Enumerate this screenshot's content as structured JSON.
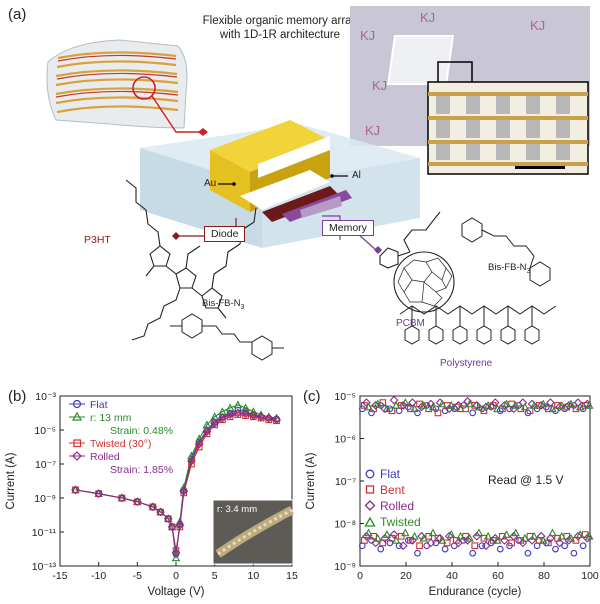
{
  "panel_a": {
    "label": "(a)",
    "title_line1": "Flexible organic memory array",
    "title_line2": "with 1D-1R architecture",
    "au": "Au",
    "al": "Al",
    "diode": "Diode",
    "memory": "Memory",
    "p3ht": "P3HT",
    "bisfb_left": "Bis-FB-N",
    "bisfb_left_sub": "3",
    "bisfb_right": "Bis-FB-N",
    "bisfb_right_sub": "3",
    "pcbm": "PCBM",
    "polystyrene": "Polystyrene",
    "colors": {
      "diode": "#8b1a1a",
      "memory": "#7a3f9a",
      "p3ht": "#a01818",
      "pcbm": "#6b3a9a",
      "connector_red": "#d02020"
    }
  },
  "panel_b": {
    "label": "(b)",
    "legend": [
      "Flat",
      "r: 13 mm",
      "Strain: 0.48%",
      "Twisted (30°)",
      "Rolled",
      "Strain: 1.85%"
    ],
    "inset_label": "r: 3.4 mm",
    "chart_data": {
      "type": "line",
      "xlabel": "Voltage (V)",
      "ylabel": "Current (A)",
      "xlim": [
        -15,
        15
      ],
      "ylim_log10": [
        -13,
        -3
      ],
      "x_ticks": [
        "-15",
        "-10",
        "-5",
        "0",
        "5",
        "10",
        "15"
      ],
      "y_ticks": [
        "10⁻¹³",
        "10⁻¹¹",
        "10⁻⁹",
        "10⁻⁷",
        "10⁻⁵",
        "10⁻³"
      ],
      "series": [
        {
          "name": "Flat",
          "color": "#3a3ac8",
          "marker": "circle",
          "x": [
            -13,
            -10,
            -7,
            -5,
            -3,
            -2,
            -1,
            -0.5,
            0,
            0.5,
            1,
            2,
            3,
            4,
            5,
            6,
            7,
            8,
            9,
            10,
            11,
            12,
            13
          ],
          "y": [
            3e-09,
            1.8e-09,
            1e-09,
            6e-10,
            3e-10,
            1.5e-10,
            6e-11,
            2e-11,
            5e-13,
            3e-11,
            3e-09,
            2e-07,
            2e-06,
            1e-05,
            3e-05,
            6e-05,
            0.0001,
            0.00015,
            0.00012,
            8e-05,
            6e-05,
            5e-05,
            4.5e-05
          ]
        },
        {
          "name": "r: 13 mm",
          "color": "#2a8a2a",
          "marker": "triangle",
          "x": [
            -13,
            -10,
            -7,
            -5,
            -3,
            -2,
            -1,
            -0.5,
            0,
            0.5,
            1,
            2,
            3,
            4,
            5,
            6,
            7,
            8,
            9,
            10,
            11,
            12,
            13
          ],
          "y": [
            3e-09,
            1.8e-09,
            1e-09,
            6e-10,
            3e-10,
            1.5e-10,
            6e-11,
            2e-11,
            3e-13,
            4e-11,
            4e-09,
            3e-07,
            3e-06,
            2e-05,
            6e-05,
            0.00012,
            0.0002,
            0.0003,
            0.0002,
            0.00012,
            8e-05,
            6e-05,
            5e-05
          ]
        },
        {
          "name": "Twisted (30°)",
          "color": "#d03030",
          "marker": "square",
          "x": [
            -13,
            -10,
            -7,
            -5,
            -3,
            -2,
            -1,
            -0.5,
            0,
            0.5,
            1,
            2,
            3,
            4,
            5,
            6,
            7,
            8,
            9,
            10,
            11,
            12,
            13
          ],
          "y": [
            3e-09,
            1.8e-09,
            1e-09,
            6e-10,
            3e-10,
            1.5e-10,
            6e-11,
            2e-11,
            8e-13,
            2e-11,
            2e-09,
            1e-07,
            1e-06,
            6e-06,
            2e-05,
            4e-05,
            6e-05,
            8e-05,
            7e-05,
            6e-05,
            5e-05,
            4e-05,
            3.5e-05
          ]
        },
        {
          "name": "Rolled",
          "color": "#8a2a8a",
          "marker": "diamond",
          "x": [
            -13,
            -10,
            -7,
            -5,
            -3,
            -2,
            -1,
            -0.5,
            0,
            0.5,
            1,
            2,
            3,
            4,
            5,
            6,
            7,
            8,
            9,
            10,
            11,
            12,
            13
          ],
          "y": [
            3e-09,
            1.8e-09,
            1e-09,
            6e-10,
            3e-10,
            1.5e-10,
            6e-11,
            2e-11,
            6e-13,
            2.5e-11,
            2.5e-09,
            1.5e-07,
            1.5e-06,
            8e-06,
            2.5e-05,
            5e-05,
            8e-05,
            0.0001,
            9e-05,
            7e-05,
            6e-05,
            5e-05,
            4e-05
          ]
        }
      ]
    }
  },
  "panel_c": {
    "label": "(c)",
    "legend": [
      "Flat",
      "Bent",
      "Rolled",
      "Twisted"
    ],
    "annotation": "Read @ 1.5 V",
    "chart_data": {
      "type": "scatter",
      "xlabel": "Endurance (cycle)",
      "ylabel": "Current (A)",
      "xlim": [
        0,
        100
      ],
      "ylim_log10": [
        -9,
        -5
      ],
      "x_ticks": [
        "0",
        "20",
        "40",
        "60",
        "80",
        "100"
      ],
      "y_ticks": [
        "10⁻⁹",
        "10⁻⁸",
        "10⁻⁷",
        "10⁻⁶",
        "10⁻⁵"
      ],
      "cycles": [
        1,
        5,
        9,
        13,
        17,
        21,
        25,
        29,
        33,
        37,
        41,
        45,
        49,
        53,
        57,
        61,
        65,
        69,
        73,
        77,
        81,
        85,
        89,
        93,
        97
      ],
      "series": [
        {
          "name": "Flat",
          "color": "#3a3ac8",
          "marker": "circle",
          "high": [
            5e-06,
            4e-06,
            6e-06,
            5e-06,
            4.5e-06,
            5.5e-06,
            4e-06,
            6e-06,
            5e-06,
            4.5e-06,
            5e-06,
            6e-06,
            4e-06,
            5e-06,
            5.5e-06,
            4.5e-06,
            5e-06,
            6e-06,
            4e-06,
            5e-06,
            5.5e-06,
            4.5e-06,
            5e-06,
            6e-06,
            5e-06
          ],
          "low": [
            3e-09,
            4e-09,
            2.5e-09,
            3.5e-09,
            3e-09,
            4e-09,
            2e-09,
            3e-09,
            3.5e-09,
            2.5e-09,
            3e-09,
            4e-09,
            2e-09,
            3e-09,
            3.5e-09,
            2.5e-09,
            3e-09,
            4e-09,
            2e-09,
            3e-09,
            3.5e-09,
            2.5e-09,
            3e-09,
            2e-09,
            3e-09
          ]
        },
        {
          "name": "Bent",
          "color": "#d03030",
          "marker": "square",
          "high": [
            6e-06,
            5e-06,
            7e-06,
            4.5e-06,
            6e-06,
            5e-06,
            6.5e-06,
            5e-06,
            4e-06,
            6e-06,
            5.5e-06,
            5e-06,
            6e-06,
            4.5e-06,
            6e-06,
            5e-06,
            6.5e-06,
            5e-06,
            4.5e-06,
            6e-06,
            5e-06,
            6e-06,
            5.5e-06,
            5e-06,
            6e-06
          ],
          "low": [
            4e-09,
            5e-09,
            3.5e-09,
            4.5e-09,
            5e-09,
            4e-09,
            3e-09,
            5e-09,
            4.5e-09,
            3.5e-09,
            4e-09,
            5e-09,
            3e-09,
            4.5e-09,
            4e-09,
            5e-09,
            3.5e-09,
            4e-09,
            5e-09,
            4e-09,
            3.5e-09,
            4.5e-09,
            5e-09,
            4e-09,
            5.5e-09
          ]
        },
        {
          "name": "Rolled",
          "color": "#8a2a8a",
          "marker": "diamond",
          "high": [
            7e-06,
            6e-06,
            5e-06,
            8e-06,
            6e-06,
            7e-06,
            5.5e-06,
            6.5e-06,
            7e-06,
            5e-06,
            6e-06,
            7.5e-06,
            6e-06,
            5.5e-06,
            7e-06,
            6e-06,
            5e-06,
            7e-06,
            6.5e-06,
            6e-06,
            7e-06,
            5.5e-06,
            6e-06,
            7e-06,
            6.5e-06
          ],
          "low": [
            5e-09,
            3.5e-09,
            4.5e-09,
            5.5e-09,
            3e-09,
            4e-09,
            5e-09,
            3.5e-09,
            4.5e-09,
            5e-09,
            3.5e-09,
            4e-09,
            5e-09,
            3e-09,
            4.5e-09,
            4e-09,
            5e-09,
            3.5e-09,
            4e-09,
            5e-09,
            4.5e-09,
            3.5e-09,
            4e-09,
            5e-09,
            4.5e-09
          ]
        },
        {
          "name": "Twisted",
          "color": "#2a8a2a",
          "marker": "triangle",
          "high": [
            5.5e-06,
            6.5e-06,
            5e-06,
            6e-06,
            7e-06,
            5e-06,
            6e-06,
            5.5e-06,
            6.5e-06,
            6e-06,
            5e-06,
            6.5e-06,
            5.5e-06,
            6e-06,
            5e-06,
            6.5e-06,
            6e-06,
            5.5e-06,
            6e-06,
            6.5e-06,
            5e-06,
            6e-06,
            6.5e-06,
            5.5e-06,
            6e-06
          ],
          "low": [
            6e-09,
            4.5e-09,
            5.5e-09,
            4e-09,
            6e-09,
            5e-09,
            4.5e-09,
            6e-09,
            4e-09,
            5.5e-09,
            5e-09,
            4.5e-09,
            6e-09,
            5e-09,
            4e-09,
            5.5e-09,
            6e-09,
            4.5e-09,
            5e-09,
            4e-09,
            6e-09,
            5e-09,
            4.5e-09,
            5.5e-09,
            5e-09
          ]
        }
      ]
    }
  }
}
